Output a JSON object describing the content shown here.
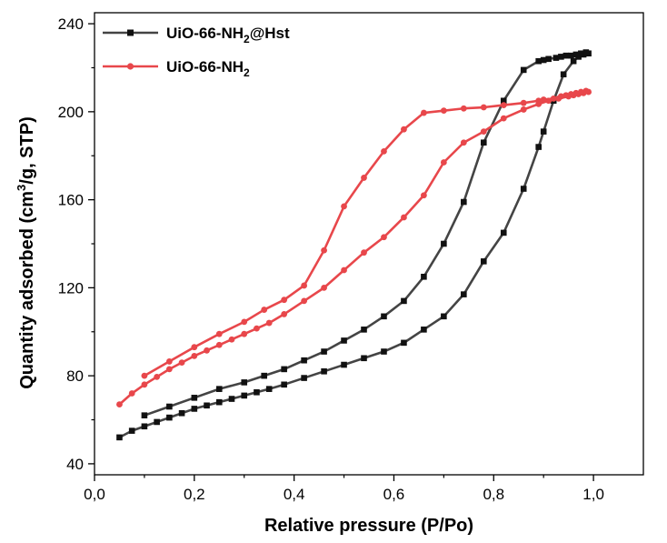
{
  "chart_data": {
    "type": "line",
    "title": "",
    "xlabel": "Relative pressure (P/Po)",
    "ylabel": {
      "prefix": "Quantity adsorbed (cm",
      "sup": "3",
      "suffix": "/g, STP)"
    },
    "xlim": [
      0.0,
      1.1
    ],
    "ylim": [
      35,
      245
    ],
    "x_ticks": [
      {
        "value": 0.0,
        "label": "0,0"
      },
      {
        "value": 0.2,
        "label": "0,2"
      },
      {
        "value": 0.4,
        "label": "0,4"
      },
      {
        "value": 0.6,
        "label": "0,6"
      },
      {
        "value": 0.8,
        "label": "0,8"
      },
      {
        "value": 1.0,
        "label": "1,0"
      }
    ],
    "y_ticks": [
      {
        "value": 40,
        "label": "40"
      },
      {
        "value": 80,
        "label": "80"
      },
      {
        "value": 120,
        "label": "120"
      },
      {
        "value": 160,
        "label": "160"
      },
      {
        "value": 200,
        "label": "200"
      },
      {
        "value": 240,
        "label": "240"
      }
    ],
    "grid": false,
    "legend_position": "top-left",
    "series": [
      {
        "name": {
          "prefix": "UiO-66-NH",
          "sub": "2",
          "suffix": "@Hst"
        },
        "color": "#444444",
        "marker": "square",
        "points": [
          [
            0.05,
            52
          ],
          [
            0.075,
            55
          ],
          [
            0.1,
            57
          ],
          [
            0.125,
            59
          ],
          [
            0.15,
            61
          ],
          [
            0.175,
            63
          ],
          [
            0.2,
            65
          ],
          [
            0.225,
            66.5
          ],
          [
            0.25,
            68
          ],
          [
            0.275,
            69.5
          ],
          [
            0.3,
            71
          ],
          [
            0.325,
            72.5
          ],
          [
            0.35,
            74
          ],
          [
            0.38,
            76
          ],
          [
            0.42,
            79
          ],
          [
            0.46,
            82
          ],
          [
            0.5,
            85
          ],
          [
            0.54,
            88
          ],
          [
            0.58,
            91
          ],
          [
            0.62,
            95
          ],
          [
            0.66,
            101
          ],
          [
            0.7,
            107
          ],
          [
            0.74,
            117
          ],
          [
            0.78,
            132
          ],
          [
            0.82,
            145
          ],
          [
            0.86,
            165
          ],
          [
            0.89,
            184
          ],
          [
            0.9,
            191
          ],
          [
            0.92,
            205
          ],
          [
            0.94,
            217
          ],
          [
            0.96,
            223
          ],
          [
            0.97,
            225
          ],
          [
            0.98,
            226
          ],
          [
            0.99,
            226.5
          ],
          [
            0.985,
            227
          ],
          [
            0.975,
            226.5
          ],
          [
            0.965,
            226
          ],
          [
            0.955,
            225.5
          ],
          [
            0.945,
            225.5
          ],
          [
            0.935,
            225
          ],
          [
            0.925,
            224.5
          ],
          [
            0.91,
            224
          ],
          [
            0.9,
            223.5
          ],
          [
            0.89,
            223
          ],
          [
            0.86,
            219
          ],
          [
            0.82,
            205
          ],
          [
            0.78,
            186
          ],
          [
            0.74,
            159
          ],
          [
            0.7,
            140
          ],
          [
            0.66,
            125
          ],
          [
            0.62,
            114
          ],
          [
            0.58,
            107
          ],
          [
            0.54,
            101
          ],
          [
            0.5,
            96
          ],
          [
            0.46,
            91
          ],
          [
            0.42,
            87
          ],
          [
            0.38,
            83
          ],
          [
            0.34,
            80
          ],
          [
            0.3,
            77
          ],
          [
            0.25,
            74
          ],
          [
            0.2,
            70
          ],
          [
            0.15,
            66
          ],
          [
            0.1,
            62
          ]
        ]
      },
      {
        "name": {
          "prefix": "UiO-66-NH",
          "sub": "2",
          "suffix": ""
        },
        "color": "#e8474b",
        "marker": "circle",
        "points": [
          [
            0.05,
            67
          ],
          [
            0.075,
            72
          ],
          [
            0.1,
            76
          ],
          [
            0.125,
            79.5
          ],
          [
            0.15,
            83
          ],
          [
            0.175,
            86
          ],
          [
            0.2,
            89
          ],
          [
            0.225,
            91.5
          ],
          [
            0.25,
            94
          ],
          [
            0.275,
            96.5
          ],
          [
            0.3,
            99
          ],
          [
            0.325,
            101.5
          ],
          [
            0.35,
            104
          ],
          [
            0.38,
            108
          ],
          [
            0.42,
            114
          ],
          [
            0.46,
            120
          ],
          [
            0.5,
            128
          ],
          [
            0.54,
            136
          ],
          [
            0.58,
            143
          ],
          [
            0.62,
            152
          ],
          [
            0.66,
            162
          ],
          [
            0.7,
            177
          ],
          [
            0.74,
            186
          ],
          [
            0.78,
            191
          ],
          [
            0.82,
            197
          ],
          [
            0.86,
            201
          ],
          [
            0.89,
            203.5
          ],
          [
            0.91,
            205
          ],
          [
            0.93,
            206
          ],
          [
            0.95,
            207
          ],
          [
            0.96,
            207.5
          ],
          [
            0.97,
            208
          ],
          [
            0.98,
            208.5
          ],
          [
            0.99,
            209
          ],
          [
            0.985,
            209.5
          ],
          [
            0.975,
            209
          ],
          [
            0.965,
            208.5
          ],
          [
            0.955,
            208
          ],
          [
            0.945,
            207.5
          ],
          [
            0.935,
            207
          ],
          [
            0.92,
            206
          ],
          [
            0.9,
            205.5
          ],
          [
            0.89,
            205
          ],
          [
            0.86,
            204
          ],
          [
            0.82,
            203
          ],
          [
            0.78,
            202
          ],
          [
            0.74,
            201.5
          ],
          [
            0.7,
            200.5
          ],
          [
            0.66,
            199.5
          ],
          [
            0.62,
            192
          ],
          [
            0.58,
            182
          ],
          [
            0.54,
            170
          ],
          [
            0.5,
            157
          ],
          [
            0.46,
            137
          ],
          [
            0.42,
            121
          ],
          [
            0.38,
            114.5
          ],
          [
            0.34,
            110
          ],
          [
            0.3,
            104.5
          ],
          [
            0.25,
            99
          ],
          [
            0.2,
            93
          ],
          [
            0.15,
            86.5
          ],
          [
            0.1,
            80
          ]
        ]
      }
    ]
  }
}
